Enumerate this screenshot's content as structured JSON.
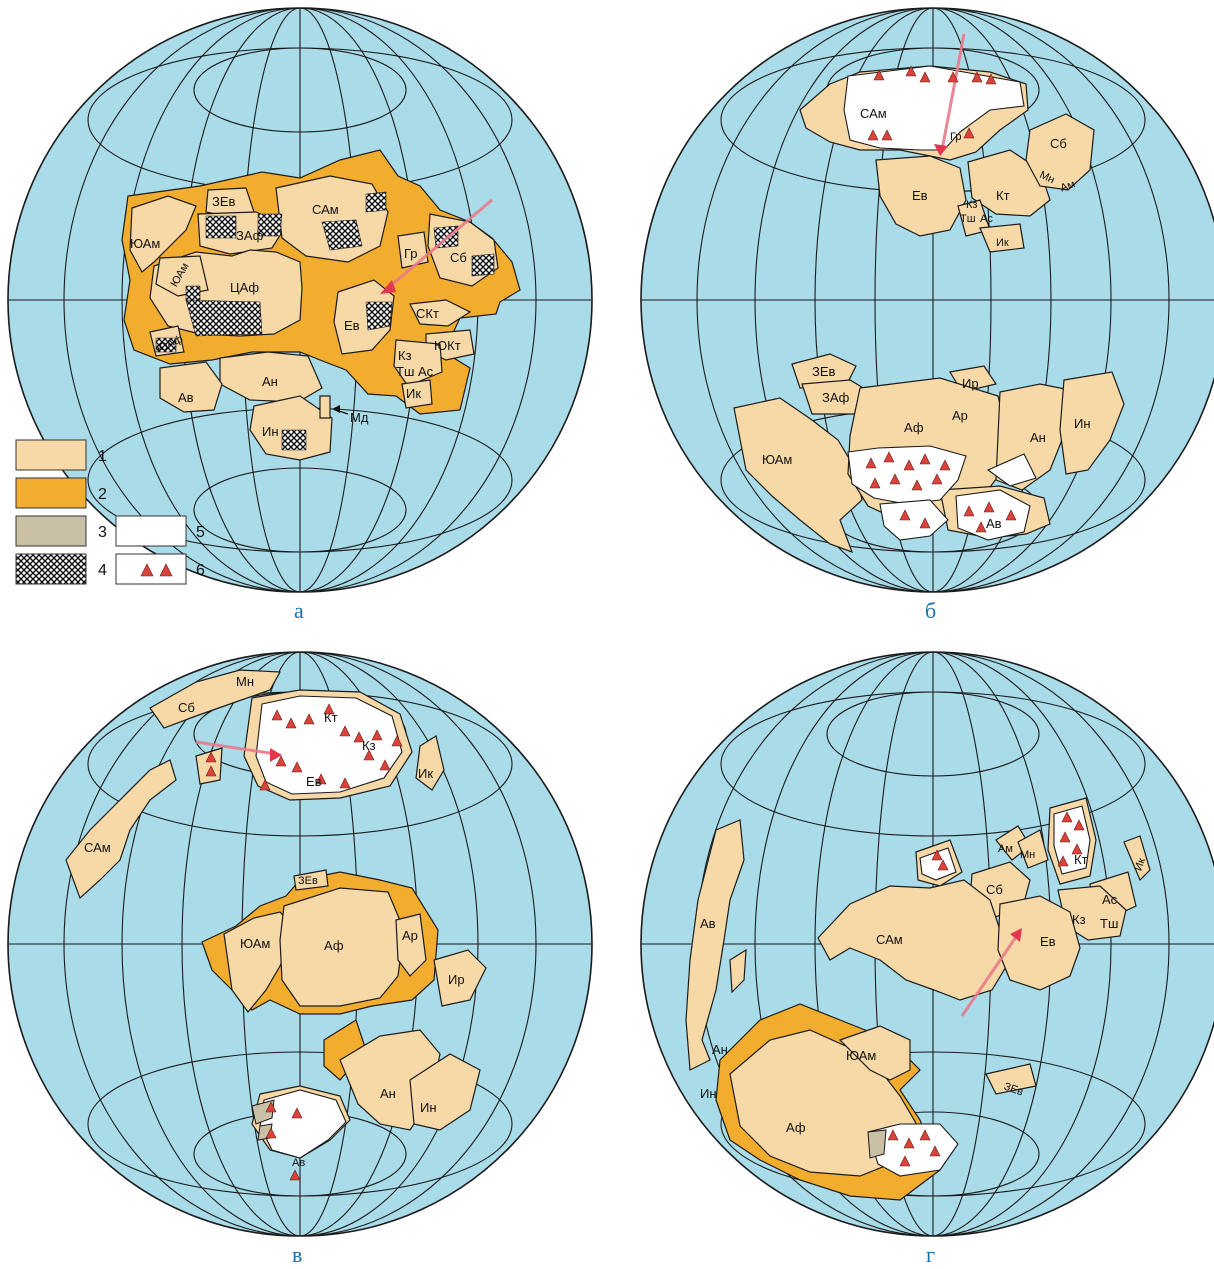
{
  "panels": [
    {
      "caption": "а",
      "labels": [
        "ЮАм",
        "ЗЕв",
        "ЗАф",
        "САм",
        "Гр",
        "Сб",
        "ЮАм",
        "ЦАф",
        "Ев",
        "СКт",
        "ЮКт",
        "ЮАф",
        "Кз",
        "Тш",
        "Ас",
        "Ик",
        "Ан",
        "Ав",
        "Ин",
        "Мд"
      ]
    },
    {
      "caption": "б",
      "labels": [
        "САм",
        "Гр",
        "Сб",
        "Мн",
        "Ам",
        "Кт",
        "Ев",
        "Кз",
        "Тш",
        "Ас",
        "Ик",
        "ЗЕв",
        "ЗАф",
        "Ир",
        "Ар",
        "Аф",
        "Ан",
        "Ин",
        "ЮАм",
        "Ав"
      ]
    },
    {
      "caption": "в",
      "labels": [
        "Мн",
        "Сб",
        "Кт",
        "Кз",
        "Ев",
        "Ик",
        "САм",
        "ЗЕв",
        "ЮАм",
        "Аф",
        "Ар",
        "Ир",
        "Ан",
        "Ин",
        "Ав"
      ]
    },
    {
      "caption": "г",
      "labels": [
        "Ам",
        "Мн",
        "Кт",
        "Сб",
        "Ик",
        "Ас",
        "Кз",
        "Тш",
        "САм",
        "Ев",
        "Ав",
        "Ан",
        "Ин",
        "ЮАм",
        "Аф",
        "ЗЕв"
      ]
    }
  ],
  "legend": {
    "items": [
      {
        "num": "1",
        "color": "#f7d9a8"
      },
      {
        "num": "2",
        "color": "#f2ad2f"
      },
      {
        "num": "3",
        "color": "#c9c0a6"
      },
      {
        "num": "4",
        "pattern": "crosshatch"
      },
      {
        "num": "5",
        "color": "#ffffff"
      },
      {
        "num": "6",
        "symbol": "red-triangles"
      }
    ]
  },
  "colors": {
    "ocean": "#a9dbe8",
    "land": "#f7d9a8",
    "shelf": "#f2ad2f",
    "ice": "#ffffff",
    "grey_deposit": "#c9c0a6",
    "caption": "#1a6fb0",
    "arrow": "#e87a8a"
  }
}
